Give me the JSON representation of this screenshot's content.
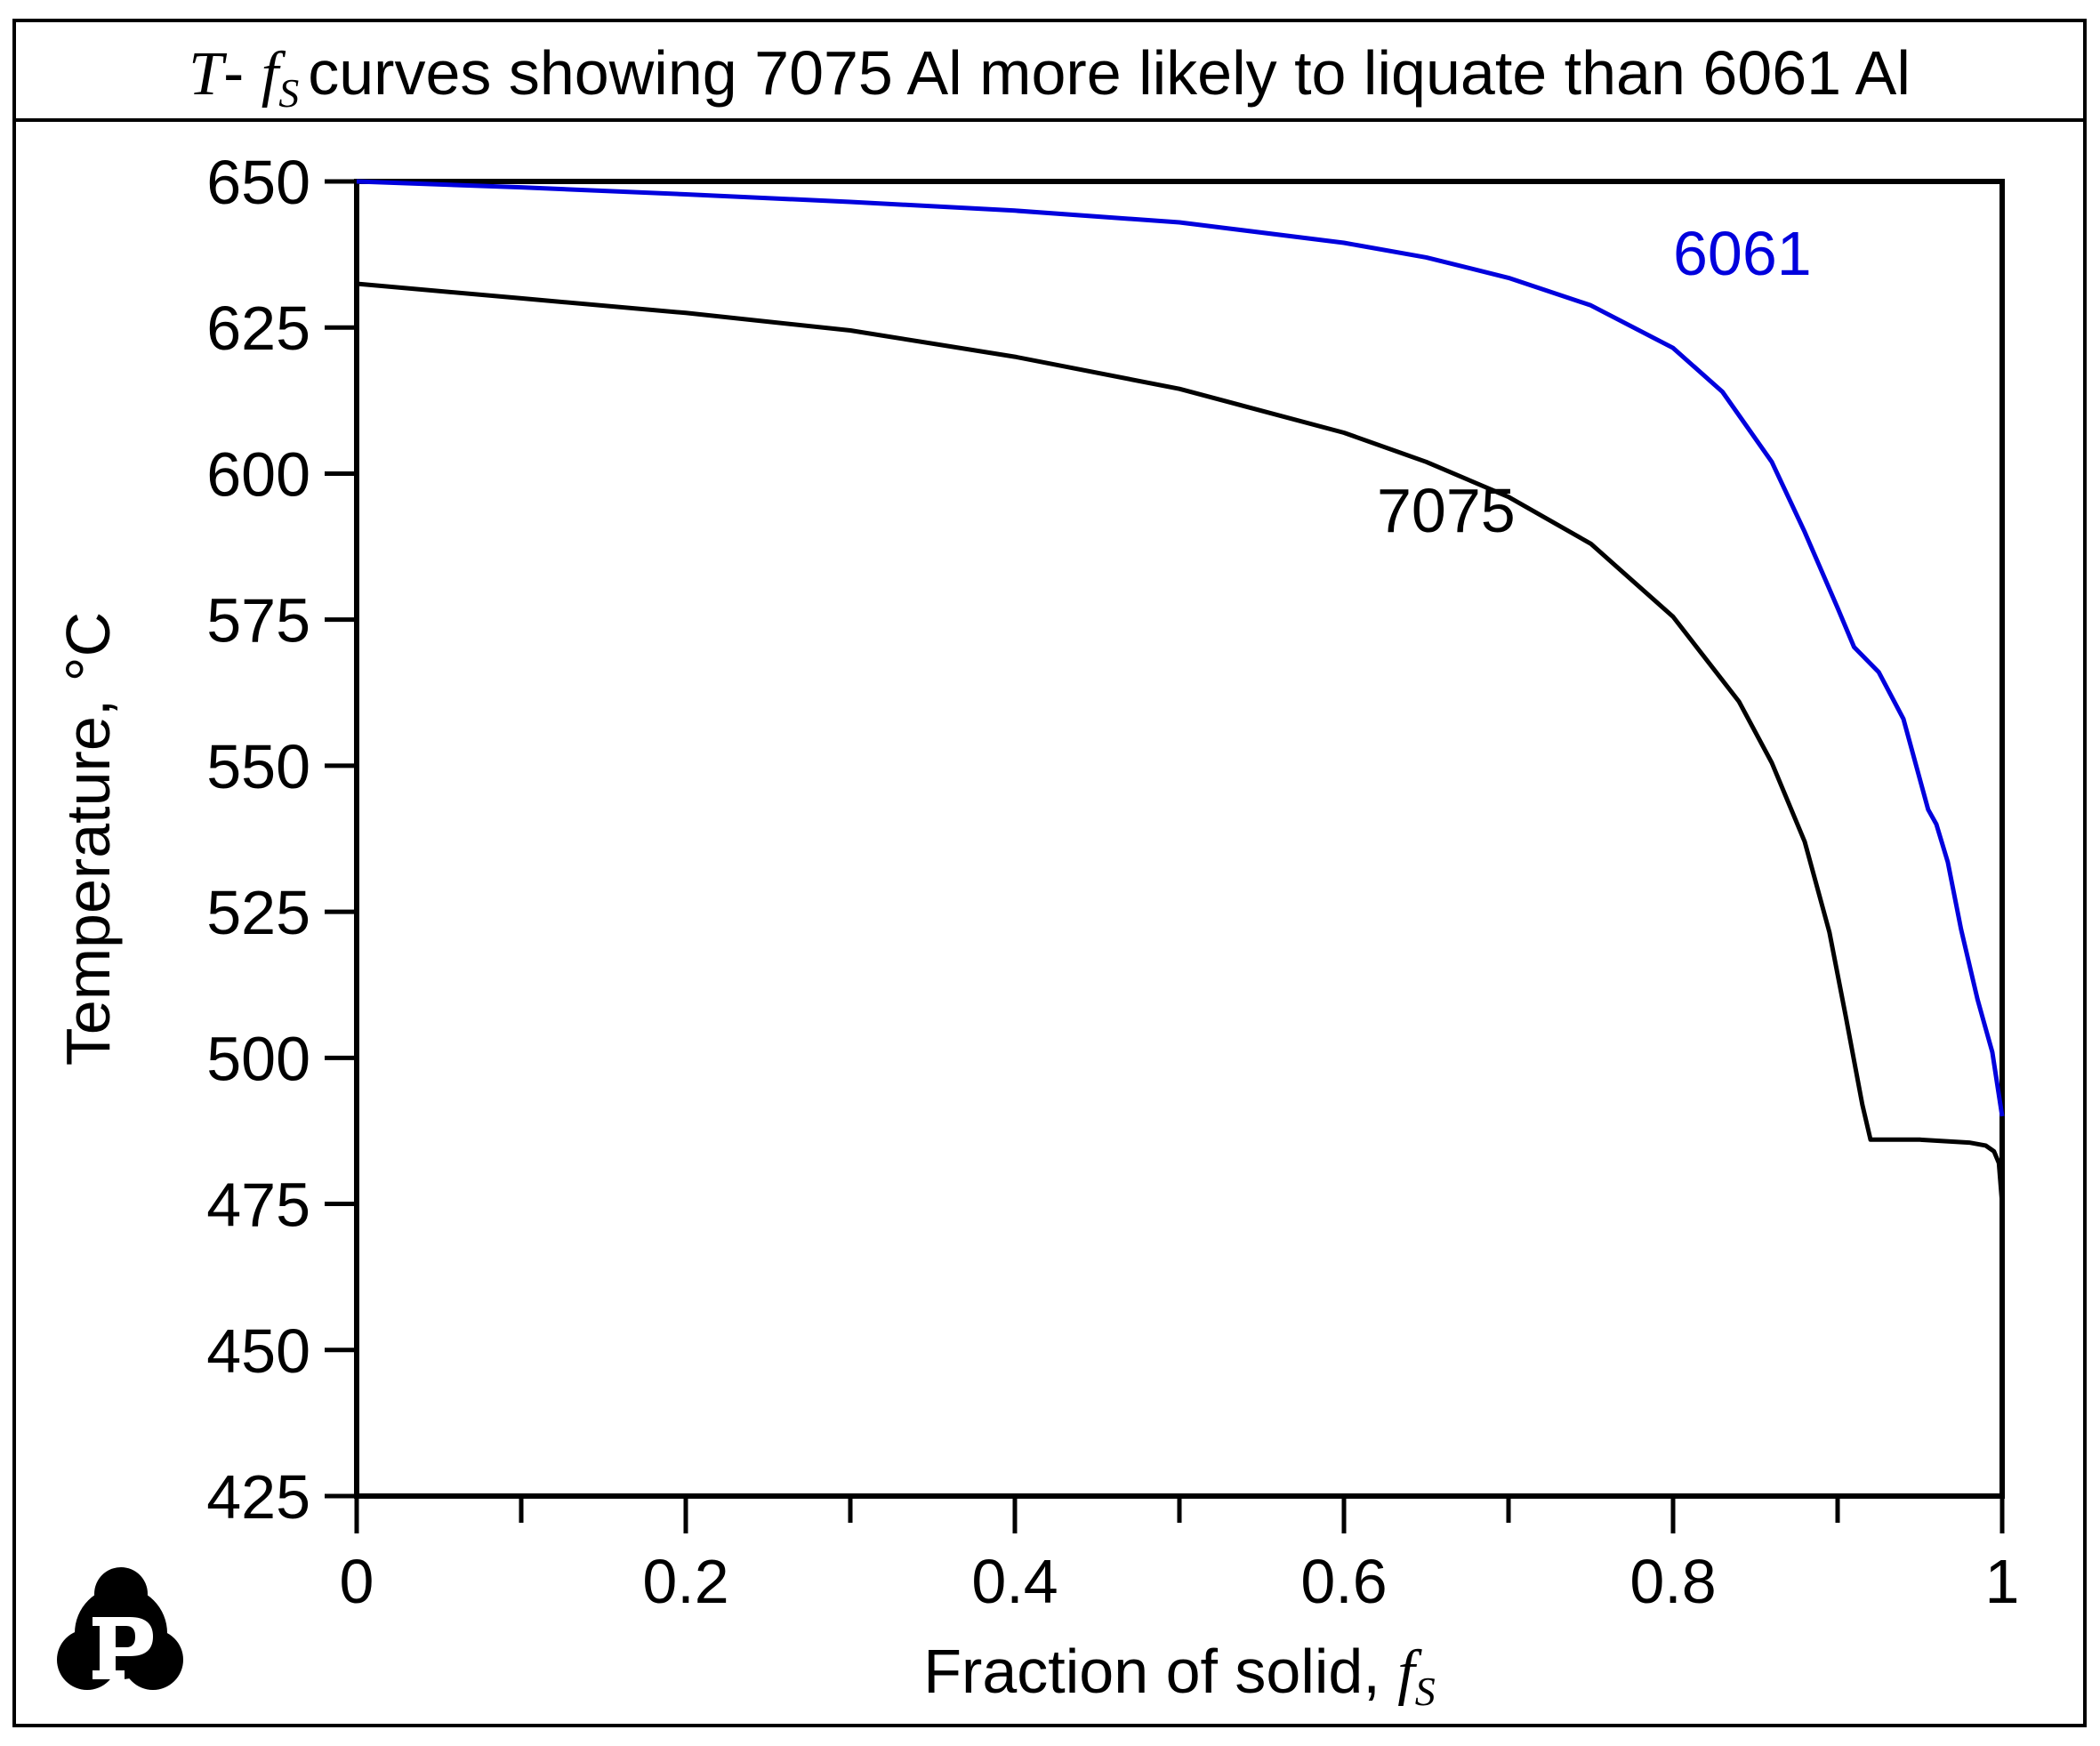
{
  "chart_data": {
    "type": "line",
    "title_prefix_var": "T",
    "title_dash": "- ",
    "title_var": "f",
    "title_sub": "S",
    "title_text": "curves showing 7075 Al more likely to liquate than 6061 Al",
    "xlabel_text": "Fraction of solid, ",
    "xlabel_var": "f",
    "xlabel_sub": "S",
    "ylabel": "Temperature, °C",
    "xlim": [
      0,
      1
    ],
    "ylim": [
      425,
      650
    ],
    "xticks": [
      0,
      0.2,
      0.4,
      0.6,
      0.8,
      1
    ],
    "xtick_labels": [
      "0",
      "0.2",
      "0.4",
      "0.6",
      "0.8",
      "1"
    ],
    "xminor": [
      0.1,
      0.3,
      0.5,
      0.7,
      0.9
    ],
    "yticks": [
      425,
      450,
      475,
      500,
      525,
      550,
      575,
      600,
      625,
      650
    ],
    "ytick_labels": [
      "425",
      "450",
      "475",
      "500",
      "525",
      "550",
      "575",
      "600",
      "625",
      "650"
    ],
    "series": [
      {
        "name": "6061",
        "color": "#0000dd",
        "label_at": [
          0.8,
          634
        ],
        "points": [
          [
            0,
            650
          ],
          [
            0.1,
            649
          ],
          [
            0.2,
            647.8
          ],
          [
            0.3,
            646.5
          ],
          [
            0.4,
            645
          ],
          [
            0.5,
            643
          ],
          [
            0.6,
            639.5
          ],
          [
            0.65,
            637
          ],
          [
            0.7,
            633.5
          ],
          [
            0.75,
            628.8
          ],
          [
            0.8,
            621.5
          ],
          [
            0.83,
            614
          ],
          [
            0.86,
            602
          ],
          [
            0.88,
            590
          ],
          [
            0.9,
            577
          ],
          [
            0.91,
            570.3
          ],
          [
            0.925,
            566
          ],
          [
            0.94,
            558
          ],
          [
            0.955,
            542.5
          ],
          [
            0.96,
            540
          ],
          [
            0.967,
            533.5
          ],
          [
            0.975,
            522
          ],
          [
            0.985,
            510
          ],
          [
            0.99,
            505
          ],
          [
            0.994,
            501
          ],
          [
            1.0,
            490
          ]
        ]
      },
      {
        "name": "7075",
        "color": "#000000",
        "label_at": [
          0.62,
          590
        ],
        "points": [
          [
            0,
            632.5
          ],
          [
            0.1,
            630
          ],
          [
            0.2,
            627.5
          ],
          [
            0.3,
            624.5
          ],
          [
            0.4,
            620
          ],
          [
            0.5,
            614.5
          ],
          [
            0.6,
            607
          ],
          [
            0.65,
            602
          ],
          [
            0.7,
            596
          ],
          [
            0.75,
            588
          ],
          [
            0.8,
            575.5
          ],
          [
            0.84,
            561
          ],
          [
            0.86,
            550.5
          ],
          [
            0.88,
            537
          ],
          [
            0.895,
            521.5
          ],
          [
            0.905,
            507
          ],
          [
            0.915,
            492
          ],
          [
            0.92,
            486
          ],
          [
            0.95,
            486
          ],
          [
            0.98,
            485.5
          ],
          [
            0.99,
            485
          ],
          [
            0.995,
            484
          ],
          [
            0.998,
            482
          ],
          [
            1.0,
            475
          ]
        ]
      }
    ]
  }
}
